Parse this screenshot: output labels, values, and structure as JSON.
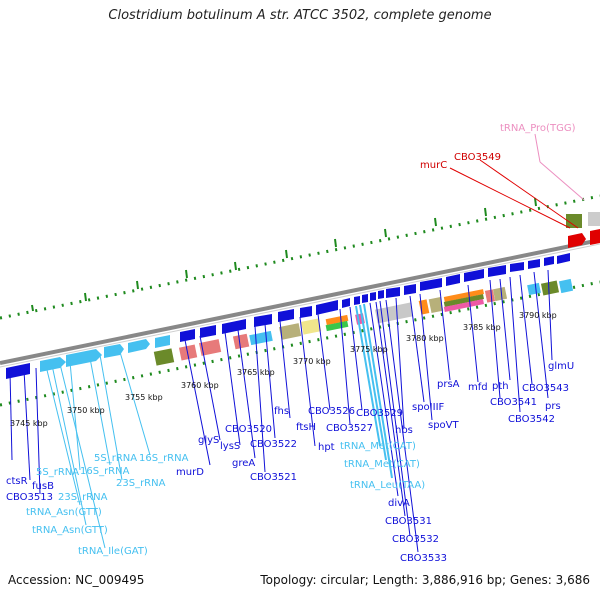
{
  "title": "Clostridium botulinum A str. ATCC 3502, complete genome",
  "footer": {
    "accession": "Accession: NC_009495",
    "summary": "Topology: circular; Length: 3,886,916 bp; Genes: 3,686"
  },
  "colors": {
    "cds": "#1010d8",
    "rna": "#45c0f0",
    "highlight": "#d00000",
    "trna_pro": "#ec8fc0",
    "ruler": "#999999",
    "tick_marks": "#1e8a1e"
  },
  "ticks": [
    "3745 kbp",
    "3750 kbp",
    "3755 kbp",
    "3760 kbp",
    "3765 kbp",
    "3770 kbp",
    "3775 kbp",
    "3780 kbp",
    "3785 kbp",
    "3790 kbp"
  ],
  "labels": {
    "trna_pro_tgg": "tRNA_Pro(TGG)",
    "cbo3549": "CBO3549",
    "murC": "murC",
    "glmU": "glmU",
    "prs": "prs",
    "cbo3543": "CBO3543",
    "pth": "pth",
    "mfd": "mfd",
    "cbo3541": "CBO3541",
    "cbo3542": "CBO3542",
    "prsA": "prsA",
    "spoIIIF": "spoIIIF",
    "spoVT": "spoVT",
    "ctsR": "ctsR",
    "fusB": "fusB",
    "cbo3513": "CBO3513",
    "rna_5s_a": "5S_rRNA",
    "rna_16s_a": "16S_rRNA",
    "rna_5s_b": "5S_rRNA",
    "rna_16s_b": "16S_rRNA",
    "rna_23s_a": "23S_rRNA",
    "rna_23s_b": "23S_rRNA",
    "trna_asn_a": "tRNA_Asn(GTT)",
    "trna_asn_b": "tRNA_Asn(GTT)",
    "trna_ile": "tRNA_Ile(GAT)",
    "murD": "murD",
    "glyS": "glyS",
    "lysS": "lysS",
    "cbo3520": "CBO3520",
    "greA": "greA",
    "cbo3522": "CBO3522",
    "cbo3521": "CBO3521",
    "fhs": "fhs",
    "ftsH": "ftsH",
    "hpt": "hpt",
    "cbo3526": "CBO3526",
    "cbo3527": "CBO3527",
    "cbo3529": "CBO3529",
    "hbs": "hbs",
    "trna_met_a": "tRNA_Met(CAT)",
    "trna_met_b": "tRNA_Met(CAT)",
    "trna_leu": "tRNA_Leu(TAA)",
    "divA": "divA",
    "cbo3531": "CBO3531",
    "cbo3532": "CBO3532",
    "cbo3533": "CBO3533"
  }
}
